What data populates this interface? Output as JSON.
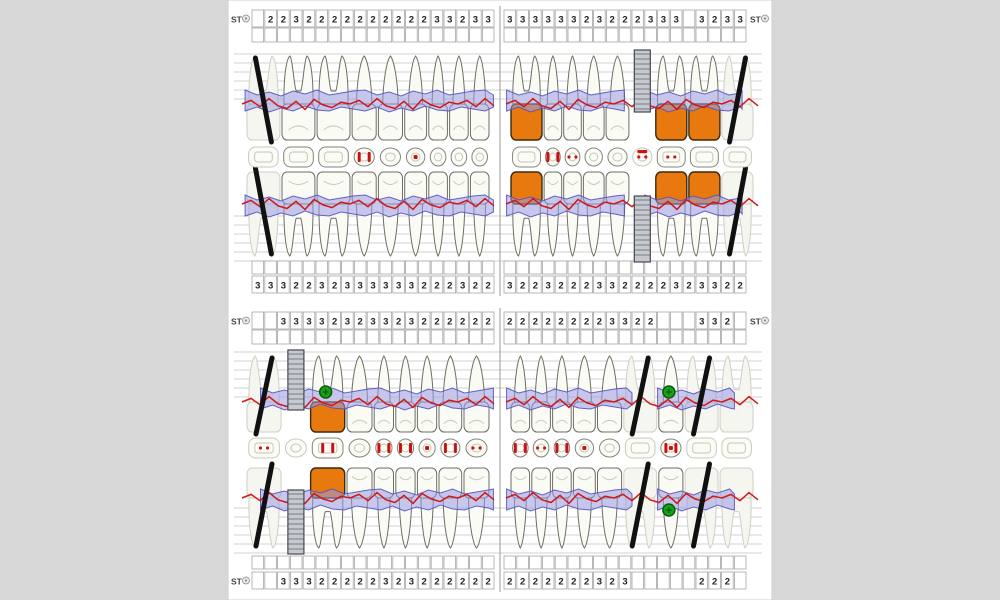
{
  "app": {
    "name": "dental-periodontal-chart"
  },
  "labels": {
    "st": "ST"
  },
  "colors": {
    "outer_bg": "#d8d8d8",
    "chart_bg": "#ffffff",
    "grid_line": "#d2d2cc",
    "divider": "#9a9a9a",
    "cell_border": "#a6a6a6",
    "cell_fill": "#ffffff",
    "digit": "#222222",
    "tooth_fill": "#fbfbf6",
    "tooth_stroke": "#6e6e64",
    "ghost_fill": "#f6f6f0",
    "ghost_stroke": "#cfcfc5",
    "crown_restoration": "#e8790f",
    "crown_restoration_stroke": "#3a2a10",
    "gum_band_fill": "#9a9ae0",
    "gum_band_stroke": "#5252c2",
    "perio_line": "#d01818",
    "occlusal_mark": "#cc1111",
    "missing_line": "#111111",
    "implant_fill": "#c6cad0",
    "implant_stroke": "#45494e",
    "marker_green": "#18a018",
    "marker_green_stroke": "#0b5a0b"
  },
  "st_rows": {
    "upper_top": {
      "left_label": true,
      "right_label": true,
      "left": [
        "",
        "2",
        "2",
        "3",
        "2",
        "2",
        "2",
        "2",
        "2",
        "2",
        "2",
        "2",
        "2",
        "2",
        "3",
        "3",
        "2",
        "3",
        "3"
      ],
      "right": [
        "3",
        "3",
        "3",
        "3",
        "3",
        "3",
        "2",
        "3",
        "2",
        "2",
        "2",
        "3",
        "3",
        "3",
        "",
        "3",
        "2",
        "3",
        "3"
      ]
    },
    "upper_bottom": {
      "left_label": false,
      "right_label": false,
      "left": [
        "3",
        "3",
        "3",
        "2",
        "2",
        "3",
        "2",
        "3",
        "3",
        "3",
        "3",
        "3",
        "3",
        "2",
        "2",
        "2",
        "3",
        "2",
        "2"
      ],
      "right": [
        "3",
        "2",
        "2",
        "3",
        "2",
        "2",
        "2",
        "3",
        "3",
        "2",
        "2",
        "2",
        "2",
        "3",
        "2",
        "3",
        "3",
        "2",
        "2"
      ]
    },
    "lower_top": {
      "left_label": true,
      "right_label": true,
      "left": [
        "",
        "",
        "3",
        "3",
        "3",
        "3",
        "2",
        "3",
        "2",
        "3",
        "3",
        "2",
        "3",
        "2",
        "2",
        "2",
        "2",
        "2",
        "2"
      ],
      "right": [
        "2",
        "2",
        "2",
        "2",
        "2",
        "2",
        "2",
        "2",
        "3",
        "3",
        "2",
        "2",
        "",
        "",
        "",
        "3",
        "3",
        "2",
        ""
      ]
    },
    "lower_bottom": {
      "left_label": true,
      "right_label": false,
      "left": [
        "",
        "",
        "3",
        "3",
        "3",
        "2",
        "2",
        "2",
        "2",
        "2",
        "3",
        "2",
        "3",
        "2",
        "2",
        "2",
        "2",
        "2",
        "2"
      ],
      "right": [
        "2",
        "2",
        "2",
        "2",
        "2",
        "2",
        "2",
        "3",
        "2",
        "3",
        "",
        "",
        "",
        "",
        "",
        "2",
        "2",
        "2",
        ""
      ]
    }
  },
  "quadrants": {
    "upper_left": {
      "black_slant": 1,
      "band_segments": [
        [
          0.02,
          0.99
        ]
      ],
      "teeth": [
        {
          "type": "molar",
          "status": "missing",
          "black_line": true
        },
        {
          "type": "molar",
          "status": "normal"
        },
        {
          "type": "molar",
          "status": "normal"
        },
        {
          "type": "premolar",
          "status": "normal"
        },
        {
          "type": "premolar",
          "status": "normal"
        },
        {
          "type": "canine",
          "status": "normal"
        },
        {
          "type": "incisor",
          "status": "normal"
        },
        {
          "type": "incisor",
          "status": "normal"
        },
        {
          "type": "incisor",
          "status": "normal"
        }
      ],
      "occlusal_marks": {
        "3": [
          "vbars"
        ],
        "5": [
          "dot"
        ]
      }
    },
    "upper_right": {
      "black_slant": -1,
      "band_segments": [
        [
          0.01,
          0.47
        ],
        [
          0.55,
          0.93
        ]
      ],
      "teeth": [
        {
          "type": "molar",
          "status": "crown"
        },
        {
          "type": "incisor",
          "status": "normal"
        },
        {
          "type": "incisor",
          "status": "normal"
        },
        {
          "type": "canine",
          "status": "normal"
        },
        {
          "type": "premolar",
          "status": "normal"
        },
        {
          "type": "premolar",
          "status": "implant"
        },
        {
          "type": "molar",
          "status": "crown"
        },
        {
          "type": "molar",
          "status": "crown"
        },
        {
          "type": "molar",
          "status": "missing",
          "black_line": true
        }
      ],
      "occlusal_marks": {
        "1": [
          "vbars"
        ],
        "2": [
          "dots"
        ],
        "5": [
          "hdash",
          "dots"
        ],
        "6": [
          "dots"
        ]
      }
    },
    "lower_left": {
      "black_slant": -1,
      "band_segments": [
        [
          0.08,
          0.99
        ]
      ],
      "teeth": [
        {
          "type": "molar",
          "status": "missing",
          "black_line": true
        },
        {
          "type": "premolar",
          "status": "implant"
        },
        {
          "type": "molar",
          "status": "crown",
          "green_marker_rows": [
            "top"
          ]
        },
        {
          "type": "premolar",
          "status": "normal"
        },
        {
          "type": "incisor",
          "status": "normal"
        },
        {
          "type": "incisor",
          "status": "normal"
        },
        {
          "type": "incisor",
          "status": "normal"
        },
        {
          "type": "canine",
          "status": "normal"
        },
        {
          "type": "premolar",
          "status": "normal"
        }
      ],
      "occlusal_marks": {
        "0": [
          "dots"
        ],
        "2": [
          "vbars"
        ],
        "4": [
          "vbars"
        ],
        "5": [
          "vbars"
        ],
        "6": [
          "dot"
        ],
        "7": [
          "vbars"
        ],
        "8": [
          "dots"
        ]
      }
    },
    "lower_right": {
      "black_slant": -1,
      "band_segments": [
        [
          0.01,
          0.5
        ],
        [
          0.6,
          0.9
        ]
      ],
      "teeth": [
        {
          "type": "incisor",
          "status": "normal"
        },
        {
          "type": "incisor",
          "status": "normal"
        },
        {
          "type": "incisor",
          "status": "normal"
        },
        {
          "type": "canine",
          "status": "normal"
        },
        {
          "type": "premolar",
          "status": "normal"
        },
        {
          "type": "molar",
          "status": "missing",
          "black_line": true
        },
        {
          "type": "premolar",
          "status": "normal",
          "green_marker_rows": [
            "top",
            "bottom"
          ]
        },
        {
          "type": "molar",
          "status": "missing",
          "black_line": true
        },
        {
          "type": "molar",
          "status": "ghost"
        }
      ],
      "occlusal_marks": {
        "0": [
          "vbars"
        ],
        "1": [
          "dots"
        ],
        "2": [
          "vbars"
        ],
        "3": [
          "dot"
        ],
        "6": [
          "vbars",
          "dot"
        ]
      }
    }
  }
}
